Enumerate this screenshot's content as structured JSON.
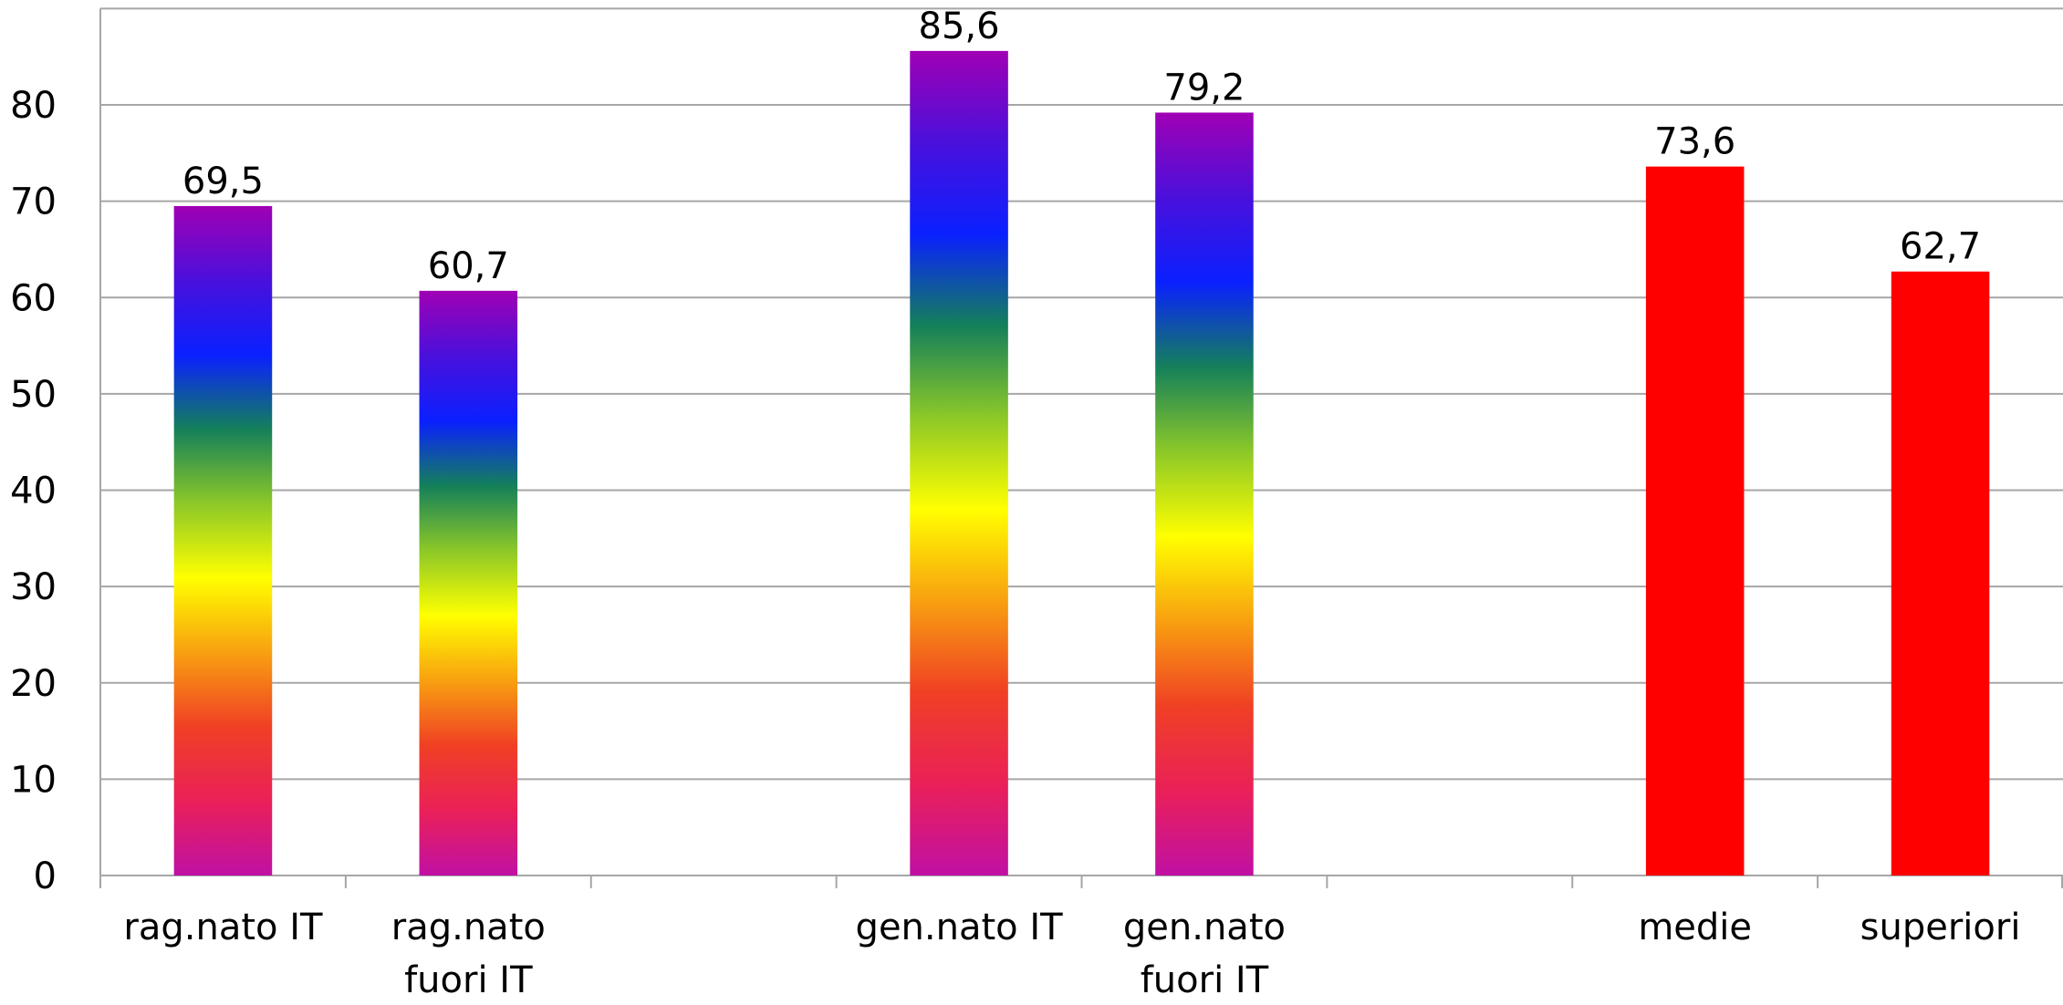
{
  "chart_data": {
    "type": "bar",
    "categories": [
      "rag.nato IT",
      "rag.nato fuori IT",
      null,
      "gen.nato IT",
      "gen.nato fuori IT",
      null,
      "medie",
      "superiori"
    ],
    "values": [
      69.5,
      60.7,
      null,
      85.6,
      79.2,
      null,
      73.6,
      62.7
    ],
    "value_labels": [
      "69,5",
      "60,7",
      null,
      "85,6",
      "79,2",
      null,
      "73,6",
      "62,7"
    ],
    "colors": [
      "rainbow",
      "rainbow",
      null,
      "rainbow",
      "rainbow",
      null,
      "#ff0000",
      "#ff0000"
    ],
    "rainbow": [
      "#a000b4",
      "#4a10dc",
      "#0a20ff",
      "#14805a",
      "#8cc828",
      "#ffff00",
      "#f8a010",
      "#f04024",
      "#ea2058",
      "#c010a4"
    ],
    "ylim": [
      0,
      90
    ],
    "yticks": [
      0,
      10,
      20,
      30,
      40,
      50,
      60,
      70,
      80
    ],
    "grid": true
  }
}
